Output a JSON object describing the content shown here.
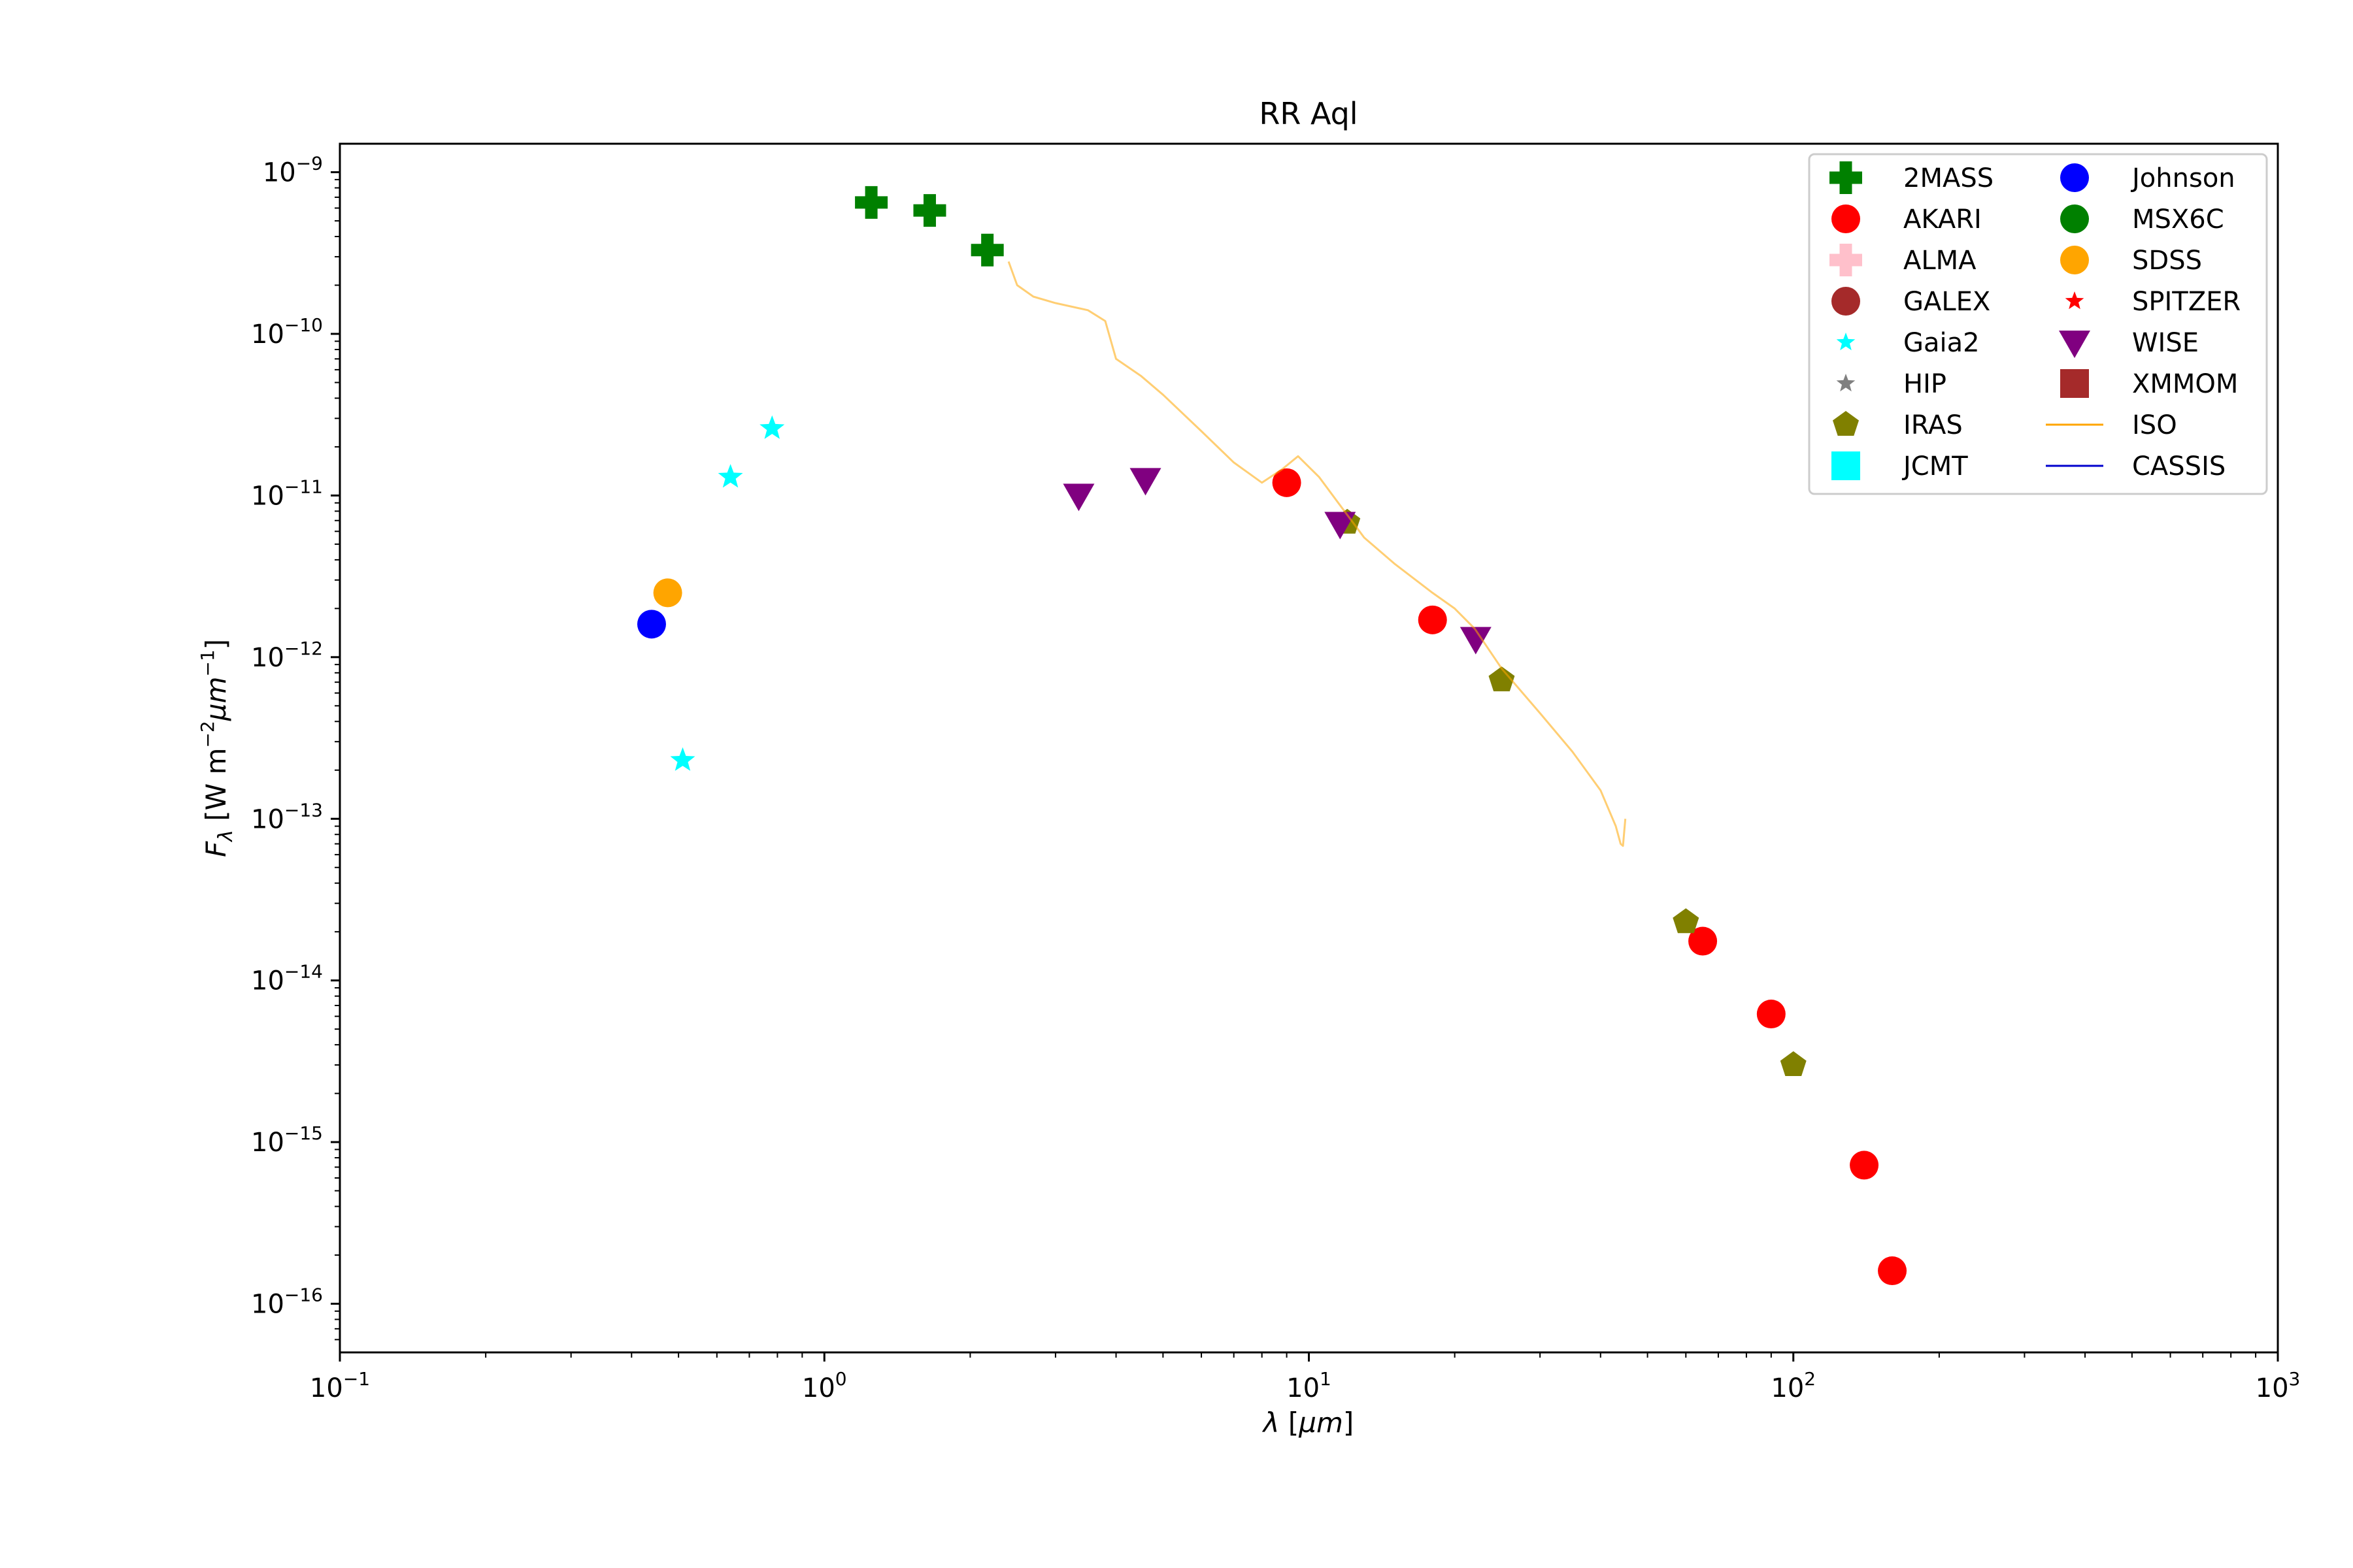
{
  "chart_data": {
    "type": "scatter",
    "title": "RR Aql",
    "xlabel": "λ [μm]",
    "ylabel": "F_λ [W m⁻²μm⁻¹]",
    "xscale": "log",
    "yscale": "log",
    "xlim": [
      0.1,
      1000
    ],
    "ylim": [
      5e-17,
      1.5e-09
    ],
    "grid": false,
    "legend_position": "top-right",
    "x_ticks": [
      {
        "value": 0.1,
        "base": "10",
        "exp": "−1"
      },
      {
        "value": 1,
        "base": "10",
        "exp": "0"
      },
      {
        "value": 10,
        "base": "10",
        "exp": "1"
      },
      {
        "value": 100,
        "base": "10",
        "exp": "2"
      },
      {
        "value": 1000,
        "base": "10",
        "exp": "3"
      }
    ],
    "y_ticks": [
      {
        "value": 1e-09,
        "base": "10",
        "exp": "−9"
      },
      {
        "value": 1e-10,
        "base": "10",
        "exp": "−10"
      },
      {
        "value": 1e-11,
        "base": "10",
        "exp": "−11"
      },
      {
        "value": 1e-12,
        "base": "10",
        "exp": "−12"
      },
      {
        "value": 1e-13,
        "base": "10",
        "exp": "−13"
      },
      {
        "value": 1e-14,
        "base": "10",
        "exp": "−14"
      },
      {
        "value": 1e-15,
        "base": "10",
        "exp": "−15"
      },
      {
        "value": 1e-16,
        "base": "10",
        "exp": "−16"
      }
    ],
    "series": [
      {
        "name": "2MASS",
        "marker": "plus",
        "color": "#008000",
        "points": [
          [
            1.25,
            6.5e-10
          ],
          [
            1.65,
            5.8e-10
          ],
          [
            2.17,
            3.3e-10
          ]
        ]
      },
      {
        "name": "AKARI",
        "marker": "circle",
        "color": "#ff0000",
        "points": [
          [
            9.0,
            1.2e-11
          ],
          [
            18.0,
            1.7e-12
          ],
          [
            65.0,
            1.75e-14
          ],
          [
            90.0,
            6.2e-15
          ],
          [
            140.0,
            7.2e-16
          ],
          [
            160.0,
            1.6e-16
          ]
        ]
      },
      {
        "name": "ALMA",
        "marker": "plus",
        "color": "#ffc0cb",
        "points": []
      },
      {
        "name": "GALEX",
        "marker": "circle",
        "color": "#a52a2a",
        "points": []
      },
      {
        "name": "Gaia2",
        "marker": "star",
        "color": "#00ffff",
        "points": [
          [
            0.51,
            2.3e-13
          ],
          [
            0.64,
            1.3e-11
          ],
          [
            0.78,
            2.6e-11
          ]
        ]
      },
      {
        "name": "HIP",
        "marker": "star",
        "color": "#808080",
        "points": []
      },
      {
        "name": "IRAS",
        "marker": "pentagon",
        "color": "#808000",
        "points": [
          [
            12.0,
            6.8e-12
          ],
          [
            25.0,
            7.2e-13
          ],
          [
            60.0,
            2.3e-14
          ],
          [
            100.0,
            3e-15
          ]
        ]
      },
      {
        "name": "JCMT",
        "marker": "square",
        "color": "#00ffff",
        "points": []
      },
      {
        "name": "Johnson",
        "marker": "circle",
        "color": "#0000ff",
        "points": [
          [
            0.44,
            1.6e-12
          ]
        ]
      },
      {
        "name": "MSX6C",
        "marker": "circle",
        "color": "#008000",
        "points": []
      },
      {
        "name": "SDSS",
        "marker": "circle",
        "color": "#ffa500",
        "points": [
          [
            0.475,
            2.5e-12
          ]
        ]
      },
      {
        "name": "SPITZER",
        "marker": "star",
        "color": "#ff0000",
        "points": []
      },
      {
        "name": "WISE",
        "marker": "triangle-down",
        "color": "#800080",
        "points": [
          [
            3.35,
            1e-11
          ],
          [
            4.6,
            1.25e-11
          ],
          [
            11.6,
            6.7e-12
          ],
          [
            22.1,
            1.3e-12
          ]
        ]
      },
      {
        "name": "XMMOM",
        "marker": "square",
        "color": "#a52a2a",
        "points": []
      },
      {
        "name": "ISO",
        "marker": "line",
        "color": "#ffa500",
        "points": [
          [
            2.4,
            2.8e-10
          ],
          [
            2.5,
            2e-10
          ],
          [
            2.7,
            1.7e-10
          ],
          [
            3.0,
            1.55e-10
          ],
          [
            3.5,
            1.4e-10
          ],
          [
            3.8,
            1.2e-10
          ],
          [
            4.0,
            7e-11
          ],
          [
            4.5,
            5.5e-11
          ],
          [
            5.0,
            4.2e-11
          ],
          [
            6.0,
            2.5e-11
          ],
          [
            7.0,
            1.6e-11
          ],
          [
            8.0,
            1.2e-11
          ],
          [
            8.8,
            1.45e-11
          ],
          [
            9.5,
            1.75e-11
          ],
          [
            10.5,
            1.3e-11
          ],
          [
            11.5,
            9e-12
          ],
          [
            13.0,
            5.5e-12
          ],
          [
            15.0,
            3.8e-12
          ],
          [
            18.0,
            2.5e-12
          ],
          [
            20.0,
            2e-12
          ],
          [
            22.0,
            1.5e-12
          ],
          [
            25.0,
            8.5e-13
          ],
          [
            30.0,
            4.5e-13
          ],
          [
            35.0,
            2.6e-13
          ],
          [
            40.0,
            1.5e-13
          ],
          [
            43.0,
            9e-14
          ],
          [
            44.0,
            7e-14
          ],
          [
            44.5,
            6.8e-14
          ],
          [
            45.0,
            1e-13
          ]
        ]
      },
      {
        "name": "CASSIS",
        "marker": "line",
        "color": "#0000cd",
        "points": []
      }
    ]
  }
}
